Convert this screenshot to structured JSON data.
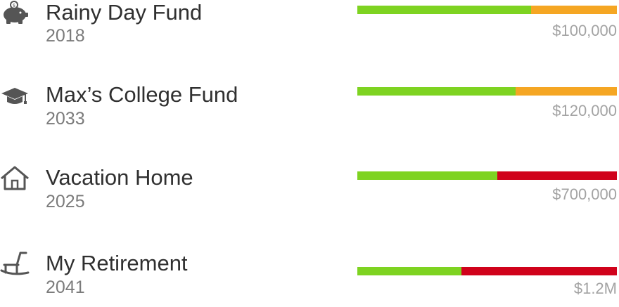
{
  "goals": [
    {
      "icon": "piggy-bank-icon",
      "name": "Rainy Day Fund",
      "year": "2018",
      "amount": "$100,000",
      "progress": 0.67,
      "status_color": "#f5a623"
    },
    {
      "icon": "graduation-cap-icon",
      "name": "Max’s College Fund",
      "year": "2033",
      "amount": "$120,000",
      "progress": 0.61,
      "status_color": "#f5a623"
    },
    {
      "icon": "house-icon",
      "name": "Vacation Home",
      "year": "2025",
      "amount": "$700,000",
      "progress": 0.54,
      "status_color": "#d0021b"
    },
    {
      "icon": "rocking-chair-icon",
      "name": "My Retirement",
      "year": "2041",
      "amount": "$1.2M",
      "progress": 0.4,
      "status_color": "#d0021b"
    }
  ],
  "colors": {
    "progress": "#7ed321",
    "on_track_warning": "#f5a623",
    "off_track": "#d0021b"
  }
}
